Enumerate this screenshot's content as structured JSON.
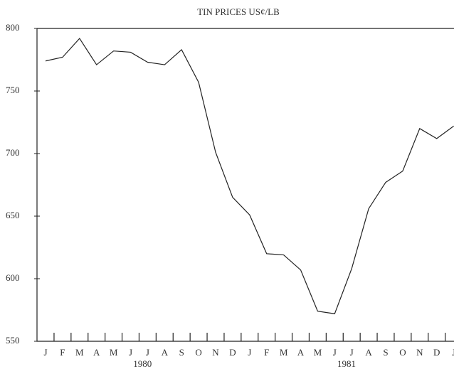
{
  "chart_data": {
    "type": "line",
    "title": "TIN PRICES  US¢/LB",
    "categories": [
      "J",
      "F",
      "M",
      "A",
      "M",
      "J",
      "J",
      "A",
      "S",
      "O",
      "N",
      "D",
      "J",
      "F",
      "M",
      "A",
      "M",
      "J",
      "J",
      "A",
      "S",
      "O",
      "N",
      "D",
      "J"
    ],
    "values": [
      774,
      777,
      792,
      771,
      782,
      781,
      773,
      771,
      783,
      757,
      701,
      665,
      651,
      620,
      619,
      607,
      574,
      572,
      608,
      656,
      677,
      686,
      720,
      712,
      722
    ],
    "year_labels": [
      "1980",
      "1981"
    ],
    "color": "#222222",
    "ylim": [
      550,
      800
    ],
    "yticks": [
      550,
      600,
      650,
      700,
      750,
      800
    ],
    "grid": false
  }
}
